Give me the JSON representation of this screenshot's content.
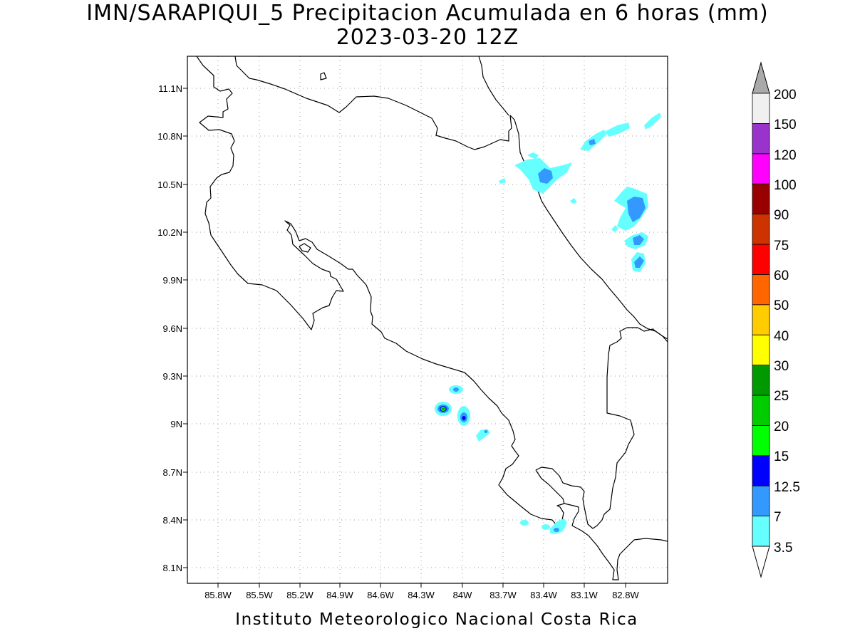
{
  "title": {
    "line1": "IMN/SARAPIQUI_5 Precipitacion Acumulada en 6 horas (mm)",
    "line2": "2023-03-20 12Z"
  },
  "footer": "Instituto Meteorologico Nacional Costa Rica",
  "axes": {
    "x_ticks": [
      "85.8W",
      "85.5W",
      "85.2W",
      "84.9W",
      "84.6W",
      "84.3W",
      "84W",
      "83.7W",
      "83.4W",
      "83.1W",
      "82.8W"
    ],
    "y_ticks": [
      "11.1N",
      "10.8N",
      "10.5N",
      "10.2N",
      "9.9N",
      "9.6N",
      "9.3N",
      "9N",
      "8.7N",
      "8.4N",
      "8.1N"
    ]
  },
  "colorbar": {
    "levels": [
      "3.5",
      "7",
      "12.5",
      "15",
      "20",
      "25",
      "30",
      "40",
      "50",
      "60",
      "75",
      "90",
      "100",
      "120",
      "150",
      "200"
    ],
    "colors": [
      "#66ffff",
      "#3399ff",
      "#0000ff",
      "#00ff00",
      "#00cc00",
      "#009900",
      "#ffff00",
      "#ffcc00",
      "#ff6600",
      "#ff0000",
      "#cc3300",
      "#990000",
      "#ff00ff",
      "#9933cc",
      "#f0f0f0"
    ],
    "over_color": "#aaaaaa",
    "under_color": "#ffffff"
  },
  "chart_data": {
    "type": "heatmap",
    "title": "IMN/SARAPIQUI_5 Precipitacion Acumulada en 6 horas (mm)",
    "subtitle": "2023-03-20 12Z",
    "units": "mm",
    "xlim": [
      -85.97,
      -82.72
    ],
    "ylim": [
      8.02,
      11.28
    ],
    "grid": true,
    "precipitation_cells": [
      {
        "lon": -83.36,
        "lat": 10.53,
        "value": 7
      },
      {
        "lon": -83.18,
        "lat": 10.64,
        "value": 3.5
      },
      {
        "lon": -83.02,
        "lat": 10.77,
        "value": 7
      },
      {
        "lon": -82.78,
        "lat": 10.85,
        "value": 3.5
      },
      {
        "lon": -82.63,
        "lat": 10.89,
        "value": 3.5
      },
      {
        "lon": -82.7,
        "lat": 10.32,
        "value": 7
      },
      {
        "lon": -82.69,
        "lat": 10.15,
        "value": 7
      },
      {
        "lon": -82.73,
        "lat": 9.99,
        "value": 7
      },
      {
        "lon": -84.15,
        "lat": 9.09,
        "value": 25
      },
      {
        "lon": -84.0,
        "lat": 9.04,
        "value": 12.5
      },
      {
        "lon": -84.07,
        "lat": 9.22,
        "value": 3.5
      },
      {
        "lon": -83.85,
        "lat": 8.92,
        "value": 3.5
      },
      {
        "lon": -83.28,
        "lat": 8.34,
        "value": 7
      },
      {
        "lon": -83.37,
        "lat": 8.35,
        "value": 3.5
      },
      {
        "lon": -83.53,
        "lat": 8.39,
        "value": 3.5
      }
    ]
  }
}
